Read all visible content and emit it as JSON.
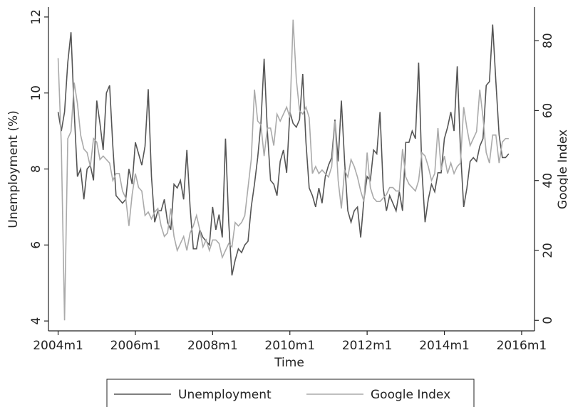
{
  "chart_data": {
    "type": "line",
    "x_label": "Time",
    "y_label": "Unemployment (%)",
    "y2_label": "Google Index",
    "x": [
      528,
      529,
      530,
      531,
      532,
      533,
      534,
      535,
      536,
      537,
      538,
      539,
      540,
      541,
      542,
      543,
      544,
      545,
      546,
      547,
      548,
      549,
      550,
      551,
      552,
      553,
      554,
      555,
      556,
      557,
      558,
      559,
      560,
      561,
      562,
      563,
      564,
      565,
      566,
      567,
      568,
      569,
      570,
      571,
      572,
      573,
      574,
      575,
      576,
      577,
      578,
      579,
      580,
      581,
      582,
      583,
      584,
      585,
      586,
      587,
      588,
      589,
      590,
      591,
      592,
      593,
      594,
      595,
      596,
      597,
      598,
      599,
      600,
      601,
      602,
      603,
      604,
      605,
      606,
      607,
      608,
      609,
      610,
      611,
      612,
      613,
      614,
      615,
      616,
      617,
      618,
      619,
      620,
      621,
      622,
      623,
      624,
      625,
      626,
      627,
      628,
      629,
      630,
      631,
      632,
      633,
      634,
      635,
      636,
      637,
      638,
      639,
      640,
      641,
      642,
      643,
      644,
      645,
      646,
      647,
      648,
      649,
      650,
      651,
      652,
      653,
      654,
      655,
      656,
      657,
      658,
      659,
      660,
      661,
      662,
      663,
      664,
      665,
      666,
      667,
      668
    ],
    "xlim": [
      525,
      676
    ],
    "xticks": [
      {
        "value": 528,
        "label": "2004m1"
      },
      {
        "value": 552,
        "label": "2006m1"
      },
      {
        "value": 576,
        "label": "2008m1"
      },
      {
        "value": 600,
        "label": "2010m1"
      },
      {
        "value": 624,
        "label": "2012m1"
      },
      {
        "value": 648,
        "label": "2014m1"
      },
      {
        "value": 672,
        "label": "2016m1"
      }
    ],
    "ylim": [
      3.74,
      12.26
    ],
    "yticks": [
      4,
      6,
      8,
      10,
      12
    ],
    "y2lim": [
      -3,
      89.6
    ],
    "y2ticks": [
      0,
      20,
      40,
      60,
      80
    ],
    "series": [
      {
        "name": "Unemployment",
        "color": "#555555",
        "values": [
          9.5,
          9.0,
          9.5,
          10.8,
          11.6,
          9.5,
          7.8,
          8.0,
          7.2,
          8.0,
          8.1,
          7.7,
          9.8,
          9.2,
          8.5,
          10.0,
          10.2,
          8.6,
          7.3,
          7.2,
          7.1,
          7.2,
          8.0,
          7.6,
          8.7,
          8.4,
          8.1,
          8.6,
          10.1,
          7.8,
          6.6,
          6.9,
          6.9,
          7.2,
          6.6,
          6.4,
          7.6,
          7.5,
          7.7,
          7.2,
          8.5,
          7.0,
          5.9,
          5.9,
          6.4,
          6.2,
          6.1,
          6.0,
          7.0,
          6.4,
          6.8,
          6.2,
          8.8,
          6.6,
          5.2,
          5.6,
          5.9,
          5.8,
          6.0,
          6.1,
          7.0,
          7.6,
          8.3,
          9.2,
          10.9,
          9.0,
          7.7,
          7.6,
          7.3,
          8.2,
          8.5,
          7.9,
          9.5,
          9.2,
          9.1,
          9.3,
          10.5,
          8.7,
          7.5,
          7.3,
          7.0,
          7.5,
          7.1,
          7.8,
          8.1,
          8.3,
          9.3,
          8.2,
          9.8,
          8.2,
          6.9,
          6.6,
          6.9,
          7.0,
          6.2,
          7.2,
          7.8,
          7.7,
          8.5,
          8.4,
          9.5,
          7.5,
          6.9,
          7.3,
          7.1,
          6.9,
          7.4,
          6.9,
          8.7,
          8.7,
          9.0,
          8.8,
          10.8,
          8.0,
          6.6,
          7.2,
          7.6,
          7.4,
          7.9,
          7.9,
          8.8,
          9.1,
          9.5,
          9.0,
          10.7,
          8.5,
          7.0,
          7.5,
          8.2,
          8.3,
          8.2,
          8.6,
          8.8,
          10.2,
          10.3,
          11.8,
          10.3,
          8.9,
          8.3,
          8.3,
          8.4
        ]
      },
      {
        "name": "Google Index",
        "color": "#aaaaaa",
        "axis": "y2",
        "values": [
          75,
          50,
          0,
          52,
          54,
          68,
          62,
          53,
          49,
          48,
          44,
          52,
          51,
          46,
          47,
          46,
          45,
          40,
          42,
          42,
          37,
          35,
          27,
          36,
          42,
          38,
          37,
          30,
          31,
          29,
          31,
          32,
          27,
          24,
          25,
          32,
          24,
          20,
          22,
          24,
          20,
          25,
          27,
          30,
          26,
          21,
          23,
          20,
          23,
          23,
          22,
          18,
          20,
          22,
          21,
          28,
          27,
          28,
          30,
          38,
          46,
          66,
          57,
          56,
          47,
          55,
          55,
          50,
          59,
          57,
          59,
          61,
          58,
          86,
          69,
          60,
          59,
          61,
          58,
          42,
          44,
          42,
          43,
          42,
          41,
          44,
          57,
          40,
          32,
          43,
          41,
          46,
          44,
          41,
          37,
          34,
          48,
          38,
          35,
          34,
          34,
          35,
          36,
          38,
          38,
          37,
          37,
          49,
          41,
          39,
          38,
          37,
          40,
          48,
          47,
          44,
          40,
          42,
          55,
          43,
          47,
          42,
          45,
          42,
          44,
          45,
          61,
          55,
          50,
          52,
          54,
          66,
          58,
          48,
          45,
          53,
          53,
          45,
          51,
          52,
          52
        ]
      }
    ]
  }
}
